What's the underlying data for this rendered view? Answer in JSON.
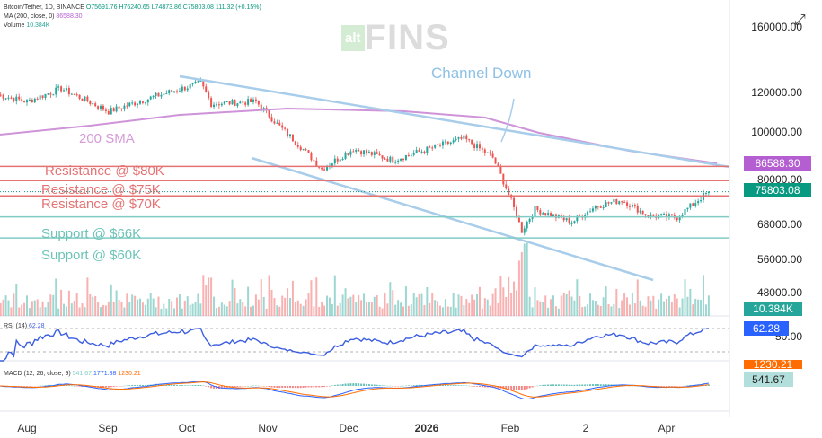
{
  "header": {
    "symbol": "Bitcoin/Tether, 1D, BINANCE",
    "open": "O75691.76",
    "high": "H76240.65",
    "low": "L74873.86",
    "close": "C75803.08",
    "change": "111.32 (+0.15%)",
    "ma_label": "MA (200, close, 0)",
    "ma_value": "86588.30",
    "volume_label": "Volume",
    "volume_value": "10.384K"
  },
  "watermark": "altFINS",
  "annotations": {
    "channel": "Channel Down",
    "sma": "200 SMA",
    "r80": "Resistance @ $80K",
    "r75": "Resistance @ $75K",
    "r70": "Resistance @ $70K",
    "s66": "Support @ $66K",
    "s60": "Support @ $60K"
  },
  "price_axis": [
    "160000.00",
    "120000.00",
    "100000.00",
    "80000.00",
    "68000.00",
    "56000.00",
    "48000.00"
  ],
  "tags": {
    "ma": "86588.30",
    "price": "75803.08",
    "volume": "10.384K",
    "rsi": "62.28",
    "rsi_hidden": "50.00",
    "macd_signal": "1230.21",
    "macd": "541.67"
  },
  "rsi": {
    "label": "RSI (14)",
    "value": "62.28"
  },
  "macd": {
    "label": "MACD (12, 26, close, 9)",
    "hist": "541.67",
    "macd": "1771.88",
    "signal": "1230.21"
  },
  "x_axis": [
    "Aug",
    "Sep",
    "Oct",
    "Nov",
    "Dec",
    "2026",
    "Feb",
    "2",
    "Apr"
  ],
  "colors": {
    "up": "#26a69a",
    "down": "#ef5350",
    "ma": "#ce93d8",
    "channel": "#a8cdea",
    "resistance": "#e57373",
    "support": "#80cbc4",
    "rsi": "#3c5ee0",
    "price_tag": "#089981",
    "ma_tag": "#b45ed1",
    "rsi_tag": "#2962ff",
    "macd_signal": "#ff6d00"
  },
  "chart_data": {
    "type": "candlestick",
    "scale": "log",
    "ylim": [
      44000,
      170000
    ],
    "keypoints": [
      {
        "date": "2025-07-20",
        "close": 118000
      },
      {
        "date": "2025-08-01",
        "close": 114000
      },
      {
        "date": "2025-08-14",
        "close": 121000
      },
      {
        "date": "2025-09-01",
        "close": 109000
      },
      {
        "date": "2025-09-18",
        "close": 116500
      },
      {
        "date": "2025-10-06",
        "close": 124000
      },
      {
        "date": "2025-10-10",
        "close": 113000
      },
      {
        "date": "2025-10-27",
        "close": 114000
      },
      {
        "date": "2025-11-04",
        "close": 103000
      },
      {
        "date": "2025-11-21",
        "close": 84000
      },
      {
        "date": "2025-12-03",
        "close": 92000
      },
      {
        "date": "2025-12-18",
        "close": 87500
      },
      {
        "date": "2026-01-14",
        "close": 96500
      },
      {
        "date": "2026-01-25",
        "close": 88500
      },
      {
        "date": "2026-02-05",
        "close": 63500
      },
      {
        "date": "2026-02-10",
        "close": 70000
      },
      {
        "date": "2026-02-24",
        "close": 66000
      },
      {
        "date": "2026-03-05",
        "close": 71000
      },
      {
        "date": "2026-03-15",
        "close": 73000
      },
      {
        "date": "2026-03-25",
        "close": 68000
      },
      {
        "date": "2026-04-05",
        "close": 67500
      },
      {
        "date": "2026-04-17",
        "close": 75803.08
      }
    ],
    "lines": {
      "resistance": [
        80000,
        75000,
        70000
      ],
      "support": [
        66000,
        60000
      ]
    },
    "ma200_last": 86588.3
  }
}
